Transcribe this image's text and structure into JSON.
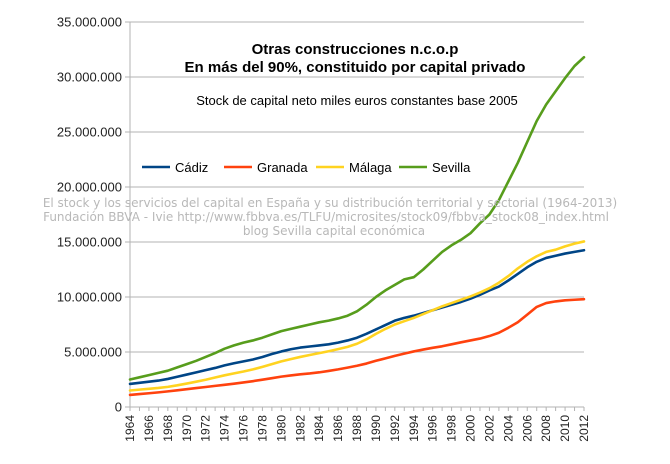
{
  "chart_data": {
    "type": "line",
    "title": "Otras construcciones n.c.o.p",
    "subtitle": "En más del 90%, constituido por capital privado",
    "annotation": "Stock de capital neto miles euros constantes base 2005",
    "xlabel": "",
    "ylabel": "",
    "ylim": [
      0,
      35000000
    ],
    "yticks": [
      0,
      5000000,
      10000000,
      15000000,
      20000000,
      25000000,
      30000000,
      35000000
    ],
    "ytick_labels": [
      "0",
      "5.000.000",
      "10.000.000",
      "15.000.000",
      "20.000.000",
      "25.000.000",
      "30.000.000",
      "35.000.000"
    ],
    "x": [
      1964,
      1965,
      1966,
      1967,
      1968,
      1969,
      1970,
      1971,
      1972,
      1973,
      1974,
      1975,
      1976,
      1977,
      1978,
      1979,
      1980,
      1981,
      1982,
      1983,
      1984,
      1985,
      1986,
      1987,
      1988,
      1989,
      1990,
      1991,
      1992,
      1993,
      1994,
      1995,
      1996,
      1997,
      1998,
      1999,
      2000,
      2001,
      2002,
      2003,
      2004,
      2005,
      2006,
      2007,
      2008,
      2009,
      2010,
      2011,
      2012
    ],
    "xtick_labels": [
      "1964",
      "1966",
      "1968",
      "1970",
      "1972",
      "1974",
      "1976",
      "1978",
      "1980",
      "1982",
      "1984",
      "1986",
      "1988",
      "1990",
      "1992",
      "1994",
      "1996",
      "1998",
      "2000",
      "2002",
      "2004",
      "2006",
      "2008",
      "2010",
      "2012"
    ],
    "grid": true,
    "legend_position": "top-left",
    "series": [
      {
        "name": "Cádiz",
        "color": "#004586",
        "values": [
          2100000,
          2200000,
          2300000,
          2400000,
          2550000,
          2750000,
          2950000,
          3150000,
          3350000,
          3550000,
          3780000,
          3980000,
          4150000,
          4320000,
          4550000,
          4820000,
          5050000,
          5250000,
          5400000,
          5500000,
          5600000,
          5700000,
          5850000,
          6050000,
          6300000,
          6650000,
          7050000,
          7450000,
          7850000,
          8100000,
          8300000,
          8550000,
          8800000,
          9050000,
          9300000,
          9550000,
          9850000,
          10200000,
          10600000,
          10950000,
          11500000,
          12100000,
          12700000,
          13200000,
          13550000,
          13750000,
          13950000,
          14100000,
          14250000
        ]
      },
      {
        "name": "Granada",
        "color": "#ff420e",
        "values": [
          1100000,
          1180000,
          1250000,
          1330000,
          1420000,
          1520000,
          1620000,
          1720000,
          1820000,
          1920000,
          2020000,
          2120000,
          2230000,
          2350000,
          2480000,
          2620000,
          2760000,
          2870000,
          2970000,
          3050000,
          3150000,
          3280000,
          3420000,
          3580000,
          3750000,
          3950000,
          4200000,
          4420000,
          4650000,
          4850000,
          5050000,
          5220000,
          5380000,
          5520000,
          5700000,
          5880000,
          6050000,
          6220000,
          6450000,
          6750000,
          7200000,
          7700000,
          8400000,
          9100000,
          9450000,
          9600000,
          9700000,
          9750000,
          9800000
        ]
      },
      {
        "name": "Málaga",
        "color": "#ffd320",
        "values": [
          1500000,
          1580000,
          1650000,
          1730000,
          1830000,
          1970000,
          2130000,
          2300000,
          2480000,
          2680000,
          2880000,
          3060000,
          3230000,
          3420000,
          3650000,
          3900000,
          4150000,
          4350000,
          4550000,
          4730000,
          4900000,
          5070000,
          5260000,
          5470000,
          5750000,
          6150000,
          6650000,
          7100000,
          7500000,
          7800000,
          8100000,
          8450000,
          8800000,
          9150000,
          9450000,
          9750000,
          10050000,
          10400000,
          10800000,
          11300000,
          11900000,
          12600000,
          13200000,
          13700000,
          14100000,
          14300000,
          14600000,
          14850000,
          15050000
        ]
      },
      {
        "name": "Sevilla",
        "color": "#579d1c",
        "values": [
          2500000,
          2700000,
          2900000,
          3100000,
          3300000,
          3600000,
          3900000,
          4200000,
          4550000,
          4900000,
          5300000,
          5600000,
          5850000,
          6050000,
          6300000,
          6600000,
          6900000,
          7100000,
          7300000,
          7500000,
          7700000,
          7850000,
          8050000,
          8300000,
          8700000,
          9300000,
          10000000,
          10600000,
          11100000,
          11600000,
          11800000,
          12500000,
          13300000,
          14100000,
          14700000,
          15200000,
          15800000,
          16700000,
          17500000,
          18800000,
          20500000,
          22200000,
          24100000,
          26000000,
          27500000,
          28700000,
          29900000,
          31000000,
          31800000
        ]
      }
    ]
  },
  "watermark": {
    "line1": "El stock y los servicios del capital en España y su distribución territorial y sectorial (1964-2013)",
    "line2": "Fundación BBVA - Ivie http://www.fbbva.es/TLFU/microsites/stock09/fbbva_stock08_index.html",
    "line3": "blog Sevilla capital económica"
  }
}
